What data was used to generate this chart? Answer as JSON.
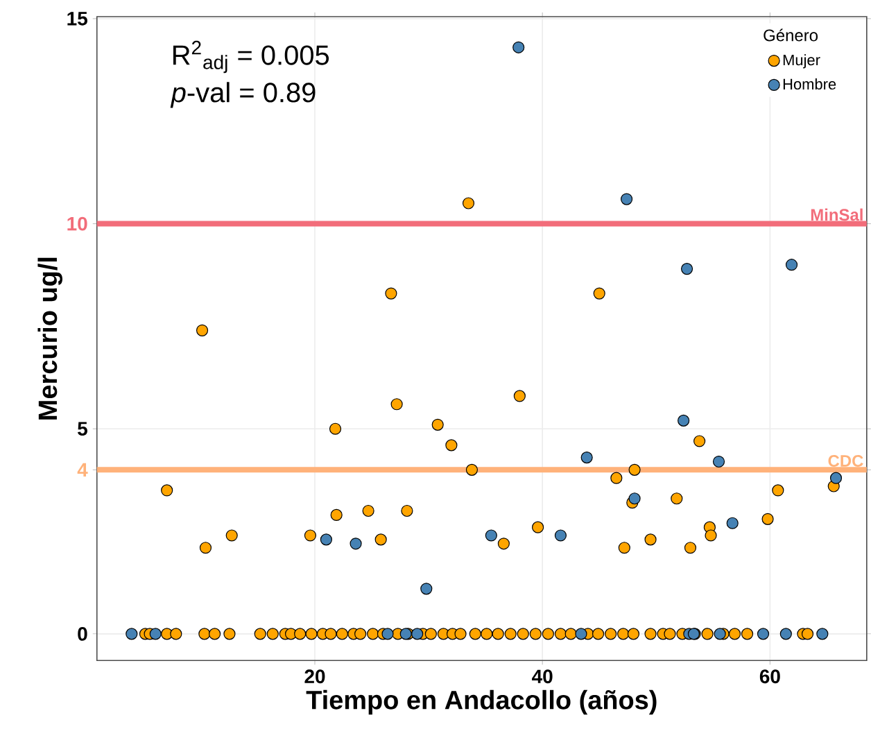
{
  "chart_data": {
    "type": "scatter",
    "xlabel": "Tiempo en Andacollo (años)",
    "ylabel": "Mercurio ug/l",
    "legend_title": "Género",
    "xlim": [
      0.85,
      68.5
    ],
    "ylim": [
      -0.65,
      15.05
    ],
    "xticks": [
      20,
      40,
      60
    ],
    "yticks": [
      0,
      4,
      5,
      10,
      15
    ],
    "grid": true,
    "legend": "top right",
    "marker": "circle",
    "annotations": [
      "R$^{2}$$_{adj}$ = 0.005",
      "*p*-val = 0.89"
    ],
    "ref_lines": [
      {
        "axis": "y",
        "value": 10,
        "label": "MinSal",
        "color": "#f26d7a"
      },
      {
        "axis": "y",
        "value": 4,
        "label": "CDC",
        "color": "#ffb27a"
      }
    ],
    "series": [
      {
        "name": "Mujer",
        "color": "#ffa500",
        "x": [
          10.1,
          26.7,
          33.5,
          45.0,
          7.0,
          10.4,
          12.7,
          19.6,
          21.8,
          21.9,
          24.7,
          25.8,
          27.2,
          28.1,
          30.8,
          32.0,
          33.8,
          36.6,
          38.0,
          39.6,
          46.5,
          47.2,
          48.1,
          47.9,
          49.5,
          51.8,
          53.8,
          53.0,
          54.7,
          54.8,
          59.8,
          60.7,
          65.6,
          5.1,
          5.5,
          7.0,
          7.8,
          10.3,
          11.2,
          12.5,
          15.2,
          16.3,
          17.4,
          17.9,
          18.7,
          19.7,
          20.7,
          21.4,
          22.4,
          23.4,
          24.0,
          25.1,
          26.0,
          27.3,
          28.2,
          29.5,
          30.2,
          31.3,
          32.1,
          32.8,
          34.1,
          35.1,
          36.1,
          37.2,
          38.3,
          39.4,
          40.5,
          41.6,
          42.5,
          44.0,
          44.9,
          46.0,
          47.1,
          48.0,
          49.5,
          50.6,
          51.2,
          52.3,
          53.4,
          54.5,
          55.9,
          56.9,
          58.0,
          62.9,
          63.3
        ],
        "values": [
          7.4,
          8.3,
          10.5,
          8.3,
          3.5,
          2.1,
          2.4,
          2.4,
          5.0,
          2.9,
          3.0,
          2.3,
          5.6,
          3.0,
          5.1,
          4.6,
          4.0,
          2.2,
          5.8,
          2.6,
          3.8,
          2.1,
          4.0,
          3.2,
          2.3,
          3.3,
          4.7,
          2.1,
          2.6,
          2.4,
          2.8,
          3.5,
          3.6,
          0,
          0,
          0,
          0,
          0,
          0,
          0,
          0,
          0,
          0,
          0,
          0,
          0,
          0,
          0,
          0,
          0,
          0,
          0,
          0,
          0,
          0,
          0,
          0,
          0,
          0,
          0,
          0,
          0,
          0,
          0,
          0,
          0,
          0,
          0,
          0,
          0,
          0,
          0,
          0,
          0,
          0,
          0,
          0,
          0,
          0,
          0,
          0,
          0,
          0,
          0,
          0
        ]
      },
      {
        "name": "Hombre",
        "color": "#4682b4",
        "x": [
          37.9,
          47.4,
          52.7,
          61.9,
          21.0,
          23.6,
          29.8,
          35.5,
          41.6,
          43.9,
          48.1,
          52.4,
          55.5,
          56.7,
          65.8,
          3.9,
          6.0,
          26.4,
          28.0,
          29.0,
          43.4,
          52.9,
          53.3,
          55.6,
          59.4,
          61.4,
          64.6
        ],
        "values": [
          14.3,
          10.6,
          8.9,
          9.0,
          2.3,
          2.2,
          1.1,
          2.4,
          2.4,
          4.3,
          3.3,
          5.2,
          4.2,
          2.7,
          3.8,
          0,
          0,
          0,
          0,
          0,
          0,
          0,
          0,
          0,
          0,
          0,
          0
        ]
      }
    ]
  }
}
